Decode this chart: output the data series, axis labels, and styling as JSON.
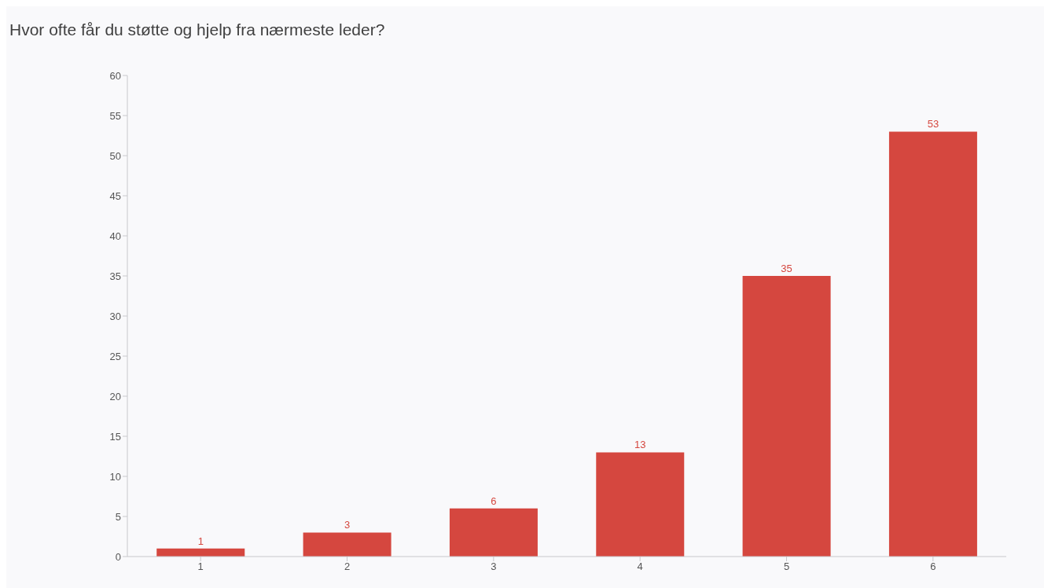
{
  "chart_data": {
    "type": "bar",
    "title": "Hvor ofte får du støtte og hjelp fra nærmeste leder?",
    "categories": [
      "1",
      "2",
      "3",
      "4",
      "5",
      "6"
    ],
    "values": [
      1,
      3,
      6,
      13,
      35,
      53
    ],
    "color": "#d5473f",
    "ylim": [
      0,
      60
    ],
    "yticks": [
      0,
      5,
      10,
      15,
      20,
      25,
      30,
      35,
      40,
      45,
      50,
      55,
      60
    ],
    "grid": false,
    "data_labels": true
  }
}
